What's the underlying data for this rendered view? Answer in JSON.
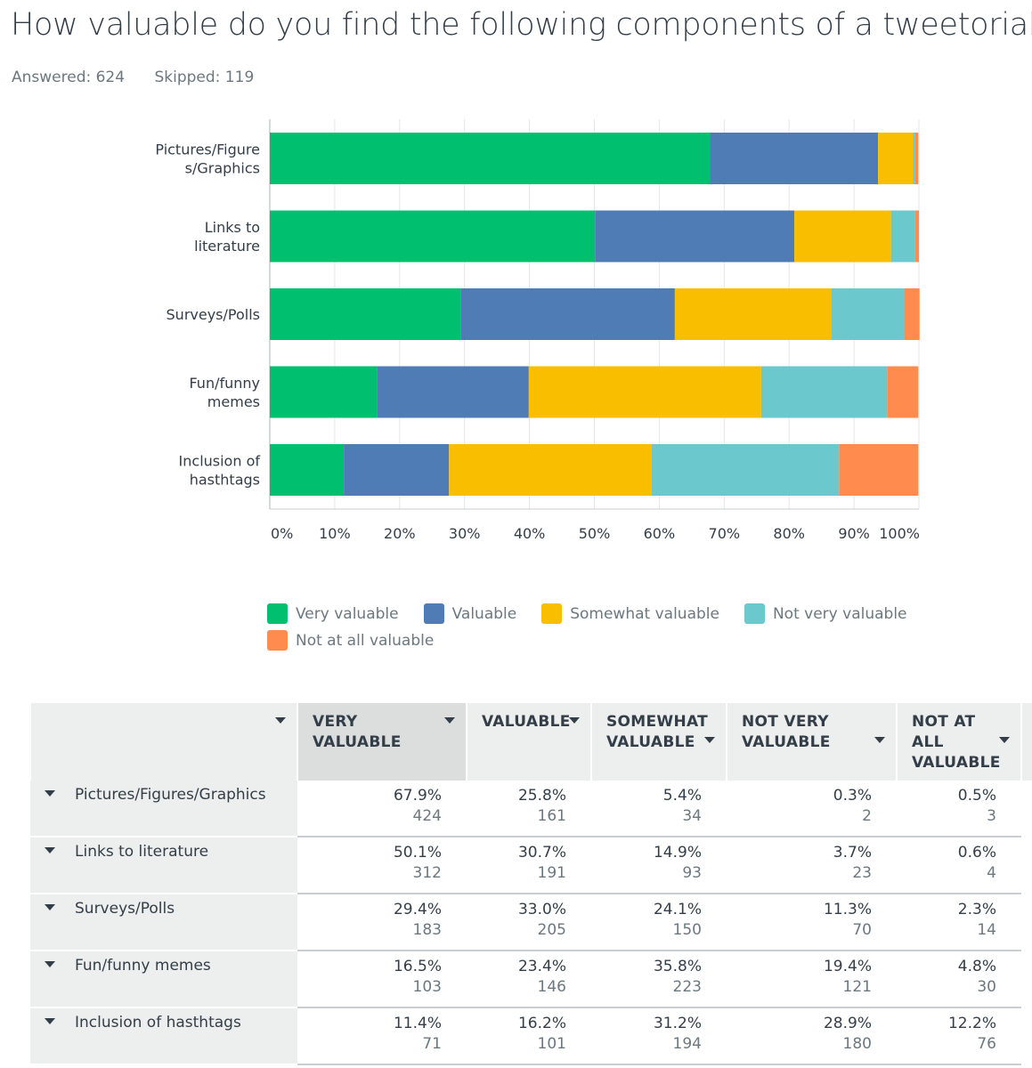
{
  "header": {
    "title": "How valuable do you find the following components of a tweetorial?",
    "answered": "Answered: 624",
    "skipped": "Skipped: 119"
  },
  "colors": {
    "very_valuable": "#00bf6f",
    "valuable": "#507cb6",
    "somewhat_valuable": "#f9be00",
    "not_very_valuable": "#6bc8cd",
    "not_at_all_valuable": "#ff8b4f"
  },
  "chart_data": {
    "type": "bar",
    "orientation": "horizontal",
    "stacked": true,
    "categories": [
      [
        "Pictures/Figure",
        "s/Graphics"
      ],
      [
        "Links to",
        "literature"
      ],
      [
        "Surveys/Polls"
      ],
      [
        "Fun/funny",
        "memes"
      ],
      [
        "Inclusion of",
        "hasthtags"
      ]
    ],
    "series": [
      {
        "name": "Very valuable",
        "color": "#00bf6f",
        "values": [
          67.9,
          50.1,
          29.4,
          16.5,
          11.4
        ]
      },
      {
        "name": "Valuable",
        "color": "#507cb6",
        "values": [
          25.8,
          30.7,
          33.0,
          23.4,
          16.2
        ]
      },
      {
        "name": "Somewhat valuable",
        "color": "#f9be00",
        "values": [
          5.4,
          14.9,
          24.1,
          35.8,
          31.2
        ]
      },
      {
        "name": "Not very valuable",
        "color": "#6bc8cd",
        "values": [
          0.3,
          3.7,
          11.3,
          19.4,
          28.9
        ]
      },
      {
        "name": "Not at all valuable",
        "color": "#ff8b4f",
        "values": [
          0.5,
          0.6,
          2.3,
          4.8,
          12.2
        ]
      }
    ],
    "xticks": [
      "0%",
      "10%",
      "20%",
      "30%",
      "40%",
      "50%",
      "60%",
      "70%",
      "80%",
      "90%",
      "100%"
    ],
    "xlim": [
      0,
      100
    ],
    "legend_position": "bottom",
    "grid": true
  },
  "table": {
    "headers": [
      {
        "label": "",
        "sorted": false
      },
      {
        "label": "VERY VALUABLE",
        "sorted": true
      },
      {
        "label": "VALUABLE",
        "sorted": false
      },
      {
        "label": "SOMEWHAT VALUABLE",
        "sorted": false
      },
      {
        "label": "NOT VERY VALUABLE",
        "sorted": false
      },
      {
        "label": "NOT AT ALL VALUABLE",
        "sorted": false
      }
    ],
    "rows": [
      {
        "label": "Pictures/Figures/Graphics",
        "cells": [
          [
            "67.9%",
            "424"
          ],
          [
            "25.8%",
            "161"
          ],
          [
            "5.4%",
            "34"
          ],
          [
            "0.3%",
            "2"
          ],
          [
            "0.5%",
            "3"
          ]
        ]
      },
      {
        "label": "Links to literature",
        "cells": [
          [
            "50.1%",
            "312"
          ],
          [
            "30.7%",
            "191"
          ],
          [
            "14.9%",
            "93"
          ],
          [
            "3.7%",
            "23"
          ],
          [
            "0.6%",
            "4"
          ]
        ]
      },
      {
        "label": "Surveys/Polls",
        "cells": [
          [
            "29.4%",
            "183"
          ],
          [
            "33.0%",
            "205"
          ],
          [
            "24.1%",
            "150"
          ],
          [
            "11.3%",
            "70"
          ],
          [
            "2.3%",
            "14"
          ]
        ]
      },
      {
        "label": "Fun/funny memes",
        "cells": [
          [
            "16.5%",
            "103"
          ],
          [
            "23.4%",
            "146"
          ],
          [
            "35.8%",
            "223"
          ],
          [
            "19.4%",
            "121"
          ],
          [
            "4.8%",
            "30"
          ]
        ]
      },
      {
        "label": "Inclusion of hasthtags",
        "cells": [
          [
            "11.4%",
            "71"
          ],
          [
            "16.2%",
            "101"
          ],
          [
            "31.2%",
            "194"
          ],
          [
            "28.9%",
            "180"
          ],
          [
            "12.2%",
            "76"
          ]
        ]
      }
    ]
  }
}
